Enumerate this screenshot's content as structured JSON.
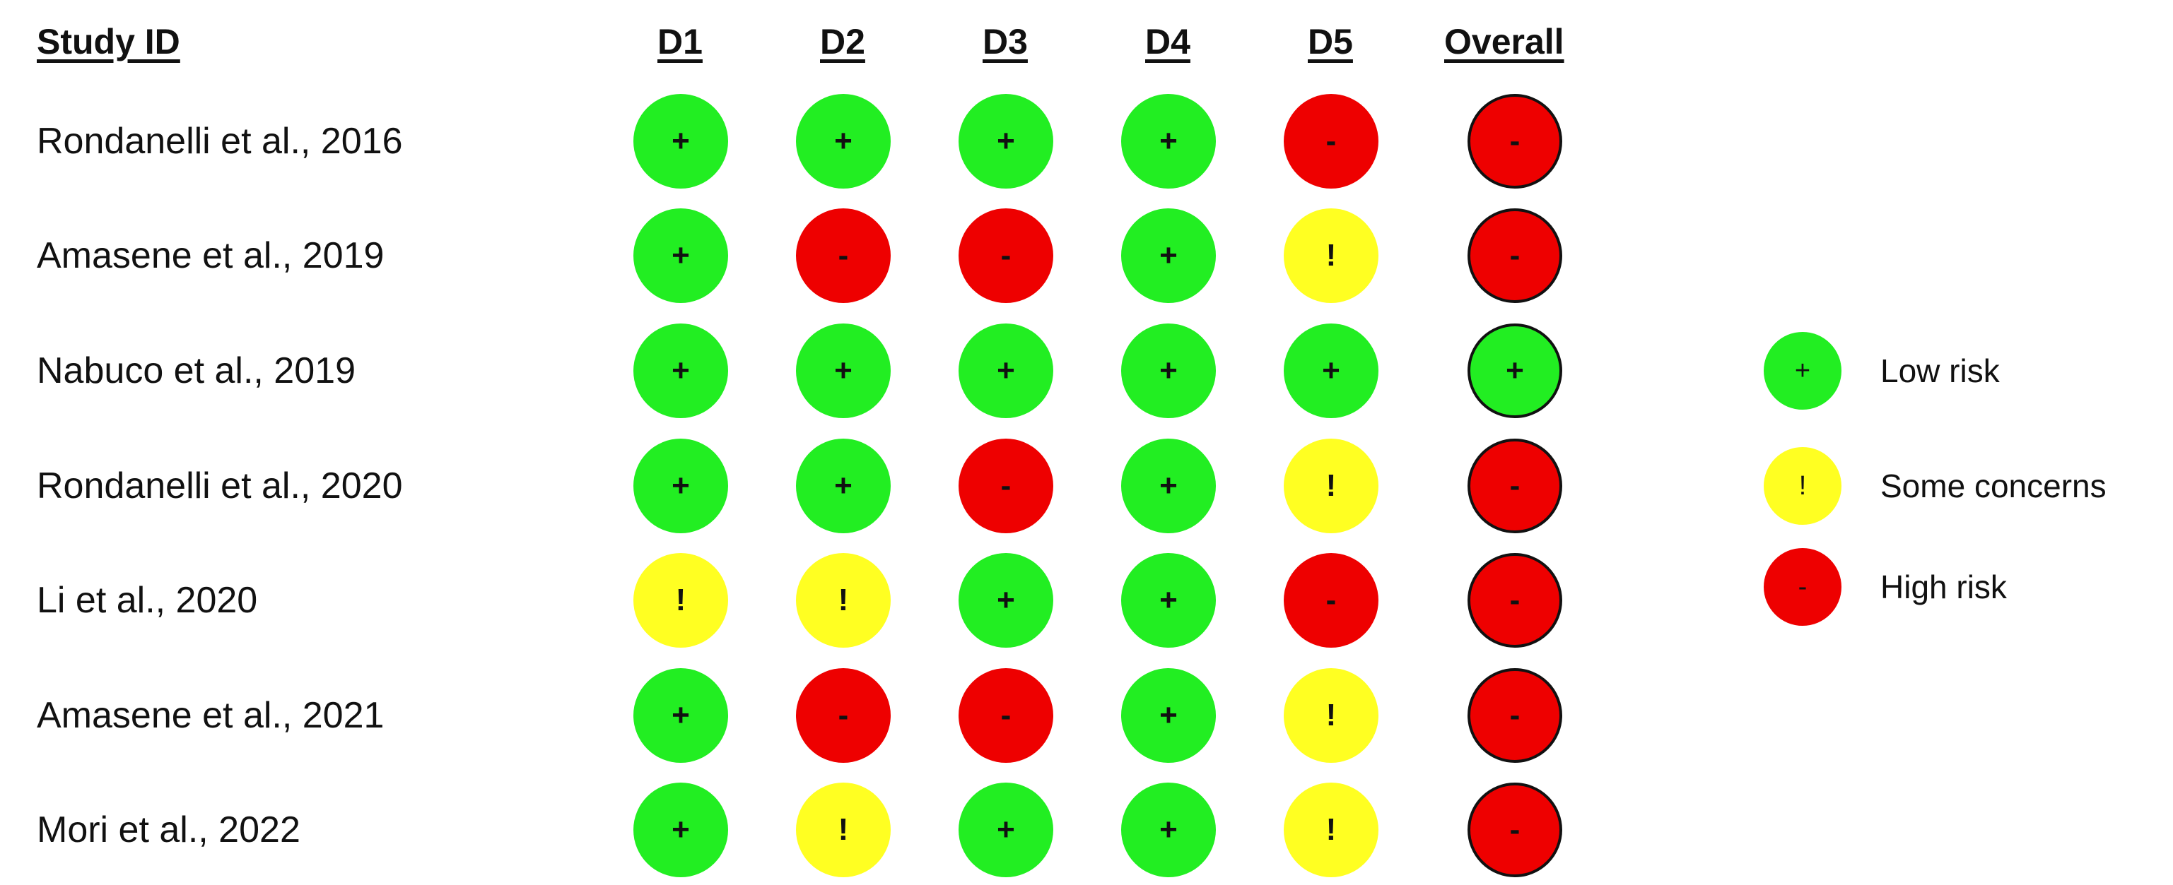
{
  "headers": {
    "study": "Study ID",
    "domains": [
      "D1",
      "D2",
      "D3",
      "D4",
      "D5",
      "Overall"
    ]
  },
  "judgements": {
    "low": {
      "symbol": "+",
      "color": "#22ee22"
    },
    "some": {
      "symbol": "!",
      "color": "#ffff22"
    },
    "high": {
      "symbol": "-",
      "color": "#ee0000"
    }
  },
  "studies": [
    {
      "name": "Rondanelli et al., 2016",
      "ratings": [
        "low",
        "low",
        "low",
        "low",
        "high",
        "high"
      ]
    },
    {
      "name": "Amasene et al., 2019",
      "ratings": [
        "low",
        "high",
        "high",
        "low",
        "some",
        "high"
      ]
    },
    {
      "name": "Nabuco et al., 2019",
      "ratings": [
        "low",
        "low",
        "low",
        "low",
        "low",
        "low"
      ]
    },
    {
      "name": "Rondanelli et al., 2020",
      "ratings": [
        "low",
        "low",
        "high",
        "low",
        "some",
        "high"
      ]
    },
    {
      "name": "Li et al., 2020",
      "ratings": [
        "some",
        "some",
        "low",
        "low",
        "high",
        "high"
      ]
    },
    {
      "name": "Amasene et al., 2021",
      "ratings": [
        "low",
        "high",
        "high",
        "low",
        "some",
        "high"
      ]
    },
    {
      "name": "Mori et al., 2022",
      "ratings": [
        "low",
        "some",
        "low",
        "low",
        "some",
        "high"
      ]
    }
  ],
  "legend": [
    {
      "key": "low",
      "symbol": "+",
      "label": "Low risk"
    },
    {
      "key": "some",
      "symbol": "!",
      "label": "Some concerns"
    },
    {
      "key": "high",
      "symbol": "-",
      "label": "High risk"
    }
  ]
}
